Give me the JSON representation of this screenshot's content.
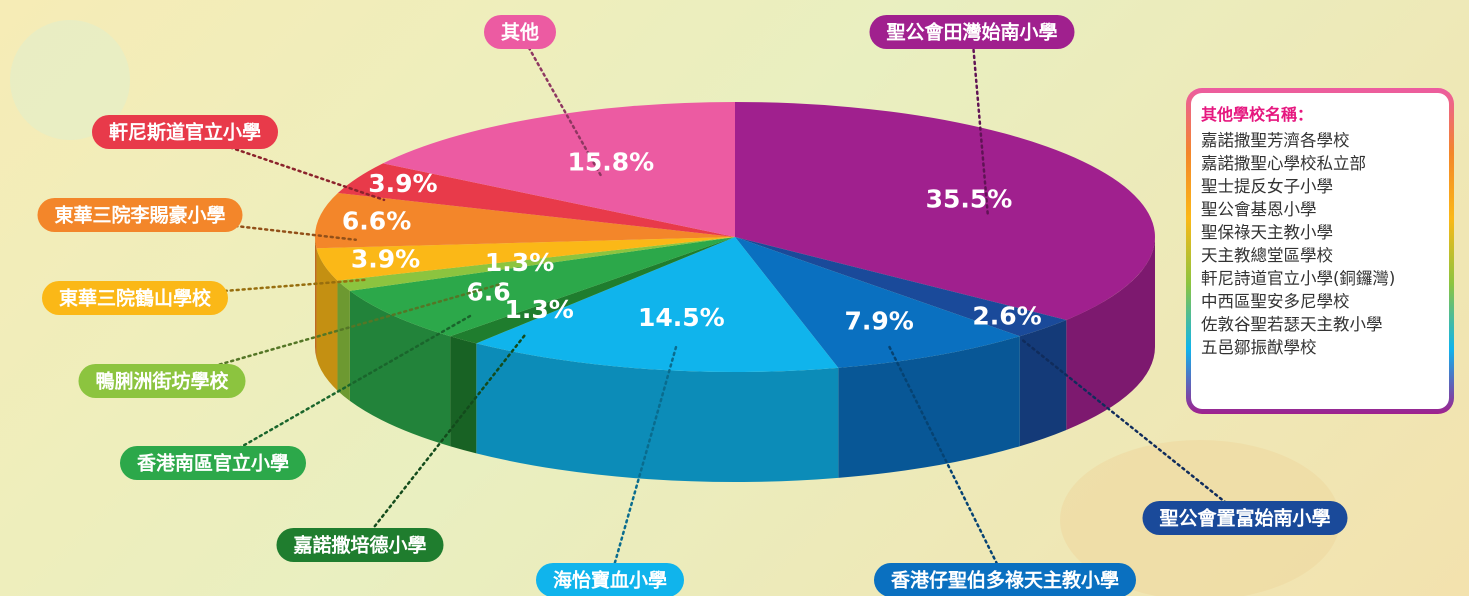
{
  "chart_data": {
    "type": "pie3d",
    "categories": [
      "聖公會田灣始南小學",
      "聖公會置富始南小學",
      "香港仔聖伯多祿天主教小學",
      "海怡寶血小學",
      "嘉諾撒培德小學",
      "香港南區官立小學",
      "鴨脷洲街坊學校",
      "東華三院鶴山學校",
      "東華三院李賜豪小學",
      "軒尼斯道官立小學",
      "其他"
    ],
    "values": [
      35.5,
      2.6,
      7.9,
      14.5,
      1.3,
      6.6,
      1.3,
      3.9,
      6.6,
      3.9,
      15.8
    ],
    "value_labels": [
      "35.5%",
      "2.6%",
      "7.9%",
      "14.5%",
      "1.3%",
      "6.6",
      "1.3%",
      "3.9%",
      "6.6%",
      "3.9%",
      "15.8%"
    ],
    "colors": [
      "#a0208e",
      "#1a4a9a",
      "#0a70c0",
      "#10b4ec",
      "#1f7d2e",
      "#2ca84a",
      "#8cc43f",
      "#fbb817",
      "#f3862a",
      "#e83a4a",
      "#ec5ba2"
    ]
  },
  "sidebar": {
    "title": "其他學校名稱：",
    "items": [
      "嘉諾撒聖芳濟各學校",
      "嘉諾撒聖心學校私立部",
      "聖士提反女子小學",
      "聖公會基恩小學",
      "聖保祿天主教小學",
      "天主教總堂區學校",
      "軒尼詩道官立小學(銅鑼灣)",
      "中西區聖安多尼學校",
      "佐敦谷聖若瑟天主教小學",
      "五邑鄒振猷學校"
    ]
  }
}
